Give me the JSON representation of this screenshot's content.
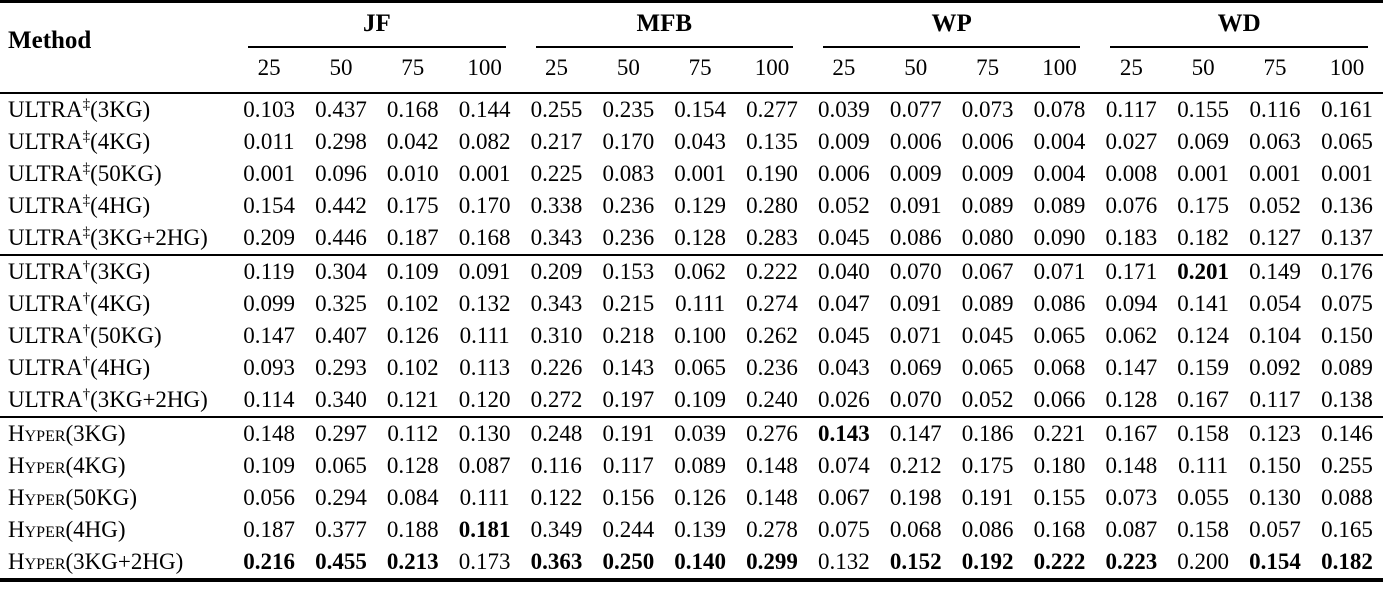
{
  "table": {
    "method_header": "Method",
    "groups": [
      {
        "label": "JF",
        "subcols": [
          "25",
          "50",
          "75",
          "100"
        ]
      },
      {
        "label": "MFB",
        "subcols": [
          "25",
          "50",
          "75",
          "100"
        ]
      },
      {
        "label": "WP",
        "subcols": [
          "25",
          "50",
          "75",
          "100"
        ]
      },
      {
        "label": "WD",
        "subcols": [
          "25",
          "50",
          "75",
          "100"
        ]
      }
    ],
    "sections": [
      {
        "name": "ultra-double-dagger",
        "rows": [
          {
            "method": {
              "base": "ULTRA",
              "sup": "‡",
              "rest": "(3KG)",
              "smallcaps": false
            },
            "values": [
              "0.103",
              "0.437",
              "0.168",
              "0.144",
              "0.255",
              "0.235",
              "0.154",
              "0.277",
              "0.039",
              "0.077",
              "0.073",
              "0.078",
              "0.117",
              "0.155",
              "0.116",
              "0.161"
            ],
            "bold": []
          },
          {
            "method": {
              "base": "ULTRA",
              "sup": "‡",
              "rest": "(4KG)",
              "smallcaps": false
            },
            "values": [
              "0.011",
              "0.298",
              "0.042",
              "0.082",
              "0.217",
              "0.170",
              "0.043",
              "0.135",
              "0.009",
              "0.006",
              "0.006",
              "0.004",
              "0.027",
              "0.069",
              "0.063",
              "0.065"
            ],
            "bold": []
          },
          {
            "method": {
              "base": "ULTRA",
              "sup": "‡",
              "rest": "(50KG)",
              "smallcaps": false
            },
            "values": [
              "0.001",
              "0.096",
              "0.010",
              "0.001",
              "0.225",
              "0.083",
              "0.001",
              "0.190",
              "0.006",
              "0.009",
              "0.009",
              "0.004",
              "0.008",
              "0.001",
              "0.001",
              "0.001"
            ],
            "bold": []
          },
          {
            "method": {
              "base": "ULTRA",
              "sup": "‡",
              "rest": "(4HG)",
              "smallcaps": false
            },
            "values": [
              "0.154",
              "0.442",
              "0.175",
              "0.170",
              "0.338",
              "0.236",
              "0.129",
              "0.280",
              "0.052",
              "0.091",
              "0.089",
              "0.089",
              "0.076",
              "0.175",
              "0.052",
              "0.136"
            ],
            "bold": []
          },
          {
            "method": {
              "base": "ULTRA",
              "sup": "‡",
              "rest": "(3KG+2HG)",
              "smallcaps": false
            },
            "values": [
              "0.209",
              "0.446",
              "0.187",
              "0.168",
              "0.343",
              "0.236",
              "0.128",
              "0.283",
              "0.045",
              "0.086",
              "0.080",
              "0.090",
              "0.183",
              "0.182",
              "0.127",
              "0.137"
            ],
            "bold": []
          }
        ]
      },
      {
        "name": "ultra-dagger",
        "rows": [
          {
            "method": {
              "base": "ULTRA",
              "sup": "†",
              "rest": "(3KG)",
              "smallcaps": false
            },
            "values": [
              "0.119",
              "0.304",
              "0.109",
              "0.091",
              "0.209",
              "0.153",
              "0.062",
              "0.222",
              "0.040",
              "0.070",
              "0.067",
              "0.071",
              "0.171",
              "0.201",
              "0.149",
              "0.176"
            ],
            "bold": [
              13
            ]
          },
          {
            "method": {
              "base": "ULTRA",
              "sup": "†",
              "rest": "(4KG)",
              "smallcaps": false
            },
            "values": [
              "0.099",
              "0.325",
              "0.102",
              "0.132",
              "0.343",
              "0.215",
              "0.111",
              "0.274",
              "0.047",
              "0.091",
              "0.089",
              "0.086",
              "0.094",
              "0.141",
              "0.054",
              "0.075"
            ],
            "bold": []
          },
          {
            "method": {
              "base": "ULTRA",
              "sup": "†",
              "rest": "(50KG)",
              "smallcaps": false
            },
            "values": [
              "0.147",
              "0.407",
              "0.126",
              "0.111",
              "0.310",
              "0.218",
              "0.100",
              "0.262",
              "0.045",
              "0.071",
              "0.045",
              "0.065",
              "0.062",
              "0.124",
              "0.104",
              "0.150"
            ],
            "bold": []
          },
          {
            "method": {
              "base": "ULTRA",
              "sup": "†",
              "rest": "(4HG)",
              "smallcaps": false
            },
            "values": [
              "0.093",
              "0.293",
              "0.102",
              "0.113",
              "0.226",
              "0.143",
              "0.065",
              "0.236",
              "0.043",
              "0.069",
              "0.065",
              "0.068",
              "0.147",
              "0.159",
              "0.092",
              "0.089"
            ],
            "bold": []
          },
          {
            "method": {
              "base": "ULTRA",
              "sup": "†",
              "rest": "(3KG+2HG)",
              "smallcaps": false
            },
            "values": [
              "0.114",
              "0.340",
              "0.121",
              "0.120",
              "0.272",
              "0.197",
              "0.109",
              "0.240",
              "0.026",
              "0.070",
              "0.052",
              "0.066",
              "0.128",
              "0.167",
              "0.117",
              "0.138"
            ],
            "bold": []
          }
        ]
      },
      {
        "name": "hyper",
        "rows": [
          {
            "method": {
              "base": "Hyper",
              "sup": "",
              "rest": "(3KG)",
              "smallcaps": true
            },
            "values": [
              "0.148",
              "0.297",
              "0.112",
              "0.130",
              "0.248",
              "0.191",
              "0.039",
              "0.276",
              "0.143",
              "0.147",
              "0.186",
              "0.221",
              "0.167",
              "0.158",
              "0.123",
              "0.146"
            ],
            "bold": [
              8
            ]
          },
          {
            "method": {
              "base": "Hyper",
              "sup": "",
              "rest": "(4KG)",
              "smallcaps": true
            },
            "values": [
              "0.109",
              "0.065",
              "0.128",
              "0.087",
              "0.116",
              "0.117",
              "0.089",
              "0.148",
              "0.074",
              "0.212",
              "0.175",
              "0.180",
              "0.148",
              "0.111",
              "0.150",
              "0.255"
            ],
            "bold": []
          },
          {
            "method": {
              "base": "Hyper",
              "sup": "",
              "rest": "(50KG)",
              "smallcaps": true
            },
            "values": [
              "0.056",
              "0.294",
              "0.084",
              "0.111",
              "0.122",
              "0.156",
              "0.126",
              "0.148",
              "0.067",
              "0.198",
              "0.191",
              "0.155",
              "0.073",
              "0.055",
              "0.130",
              "0.088"
            ],
            "bold": []
          },
          {
            "method": {
              "base": "Hyper",
              "sup": "",
              "rest": "(4HG)",
              "smallcaps": true
            },
            "values": [
              "0.187",
              "0.377",
              "0.188",
              "0.181",
              "0.349",
              "0.244",
              "0.139",
              "0.278",
              "0.075",
              "0.068",
              "0.086",
              "0.168",
              "0.087",
              "0.158",
              "0.057",
              "0.165"
            ],
            "bold": [
              3
            ]
          },
          {
            "method": {
              "base": "Hyper",
              "sup": "",
              "rest": "(3KG+2HG)",
              "smallcaps": true
            },
            "values": [
              "0.216",
              "0.455",
              "0.213",
              "0.173",
              "0.363",
              "0.250",
              "0.140",
              "0.299",
              "0.132",
              "0.152",
              "0.192",
              "0.222",
              "0.223",
              "0.200",
              "0.154",
              "0.182"
            ],
            "bold": [
              0,
              1,
              2,
              4,
              5,
              6,
              7,
              9,
              10,
              11,
              12,
              14,
              15
            ]
          }
        ]
      }
    ]
  }
}
